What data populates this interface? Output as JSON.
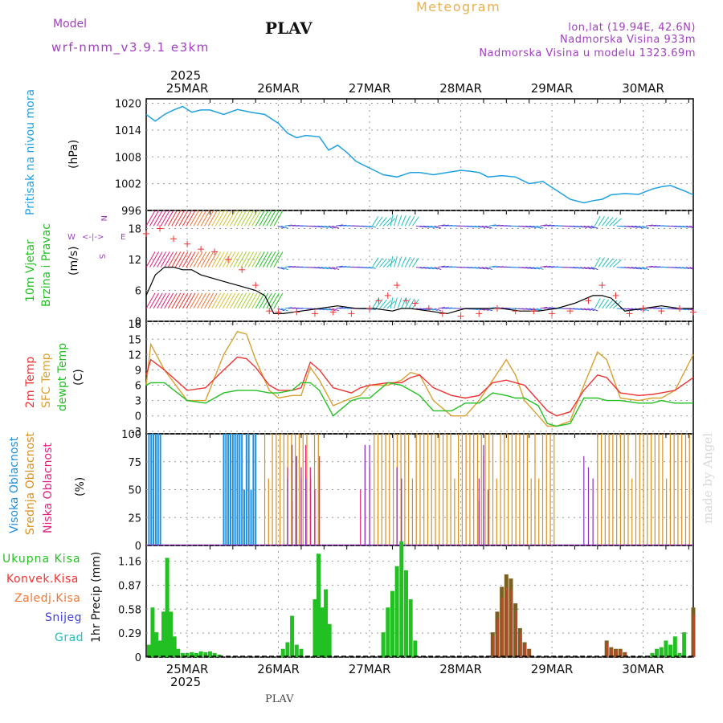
{
  "header": {
    "model_label": "Model",
    "model_name": "wrf-nmm_v3.9.1 e3km",
    "station": "PLAV",
    "meteogram_label": "Meteogram",
    "lonlat": "lon,lat (19.94E, 42.6N)",
    "altitude": "Nadmorska Visina 933m",
    "model_altitude": "Nadmorska Visina u modelu 1323.69m",
    "footer_station": "PLAV",
    "watermark": "made by Angel"
  },
  "colors": {
    "pressure": "#1fa0e0",
    "wind_green": "#22c022",
    "temp2m": "#ee3333",
    "sfc_temp": "#d8a030",
    "dewpt": "#22c022",
    "cloud_high": "#2090e0",
    "cloud_mid": "#d89020",
    "cloud_low": "#e02080",
    "cloud_purple": "#8830c0",
    "precip_total": "#22c022",
    "precip_conv": "#ee3333",
    "precip_frz": "#ee7733",
    "precip_snow": "#4040e0",
    "precip_hail": "#22c0c0",
    "header_purple": "#a040c0",
    "meteogram_orange": "#e8b050"
  },
  "chart_data": [
    {
      "type": "line",
      "id": "pressure",
      "ylabel": [
        "Pritisak na nivou mora",
        "(hPa)"
      ],
      "ylim": [
        996,
        1021
      ],
      "yticks": [
        "1020",
        "1014",
        "1008",
        "1002",
        "996"
      ],
      "x_start_day": 24.55,
      "x_end_day": 30.55,
      "x": [
        24.55,
        24.65,
        24.75,
        24.85,
        24.95,
        25.05,
        25.15,
        25.25,
        25.4,
        25.55,
        25.7,
        25.85,
        26.0,
        26.1,
        26.2,
        26.3,
        26.45,
        26.55,
        26.65,
        26.75,
        26.85,
        26.95,
        27.05,
        27.15,
        27.3,
        27.45,
        27.55,
        27.7,
        27.85,
        28.0,
        28.1,
        28.2,
        28.3,
        28.45,
        28.6,
        28.75,
        28.9,
        29.05,
        29.2,
        29.35,
        29.45,
        29.55,
        29.65,
        29.8,
        29.95,
        30.1,
        30.2,
        30.3,
        30.45,
        30.55
      ],
      "y": [
        1017.5,
        1016.0,
        1017.5,
        1018.5,
        1019.3,
        1018.0,
        1018.5,
        1018.5,
        1017.5,
        1018.6,
        1018.0,
        1017.5,
        1015.5,
        1013.3,
        1012.3,
        1012.8,
        1012.5,
        1009.5,
        1010.6,
        1009.0,
        1007.0,
        1006.0,
        1005.0,
        1004.0,
        1003.5,
        1004.5,
        1004.5,
        1004.0,
        1004.5,
        1005.0,
        1004.8,
        1004.5,
        1003.5,
        1003.8,
        1003.5,
        1002.0,
        1002.5,
        1000.5,
        998.5,
        997.7,
        998.2,
        998.5,
        999.5,
        999.8,
        999.6,
        1000.8,
        1001.3,
        1001.6,
        1000.4,
        999.5
      ]
    },
    {
      "type": "line",
      "id": "wind",
      "ylabel": [
        "10m Vjetar",
        "Brzina i Pravac",
        "(m/s)"
      ],
      "ylim": [
        0,
        21.5
      ],
      "yticks": [
        "18",
        "12",
        "6",
        "0"
      ],
      "compass_labels": [
        "N",
        "S",
        "W",
        "E"
      ],
      "speed_x": [
        24.55,
        24.65,
        24.75,
        24.85,
        24.95,
        25.05,
        25.15,
        25.25,
        25.35,
        25.45,
        25.55,
        25.65,
        25.75,
        25.85,
        25.95,
        26.05,
        26.25,
        26.45,
        26.65,
        26.85,
        27.05,
        27.25,
        27.35,
        27.45,
        27.65,
        27.85,
        28.05,
        28.25,
        28.45,
        28.65,
        28.85,
        29.05,
        29.25,
        29.45,
        29.55,
        29.65,
        29.8,
        30.0,
        30.2,
        30.4,
        30.55
      ],
      "speed_y": [
        5,
        9,
        10.5,
        10.5,
        10,
        10,
        9,
        8.5,
        8,
        7.5,
        7,
        6.5,
        6,
        5,
        1.5,
        1.5,
        2,
        2.5,
        3,
        2.5,
        2.5,
        2,
        2.5,
        2.5,
        2,
        1.5,
        2.5,
        2.5,
        2.5,
        2,
        2,
        2.5,
        3.5,
        5,
        5,
        4.5,
        2,
        2.5,
        3,
        2.5,
        2.5
      ],
      "gust_x": [
        24.55,
        24.7,
        24.85,
        25.0,
        25.15,
        25.3,
        25.45,
        25.6,
        25.75,
        25.9,
        26.0,
        26.2,
        26.4,
        26.6,
        26.8,
        27.0,
        27.1,
        27.2,
        27.3,
        27.4,
        27.5,
        27.65,
        27.8,
        28.0,
        28.2,
        28.4,
        28.6,
        28.8,
        29.0,
        29.2,
        29.4,
        29.55,
        29.7,
        29.85,
        30.0,
        30.2,
        30.4,
        30.55
      ],
      "gust_y": [
        17,
        18,
        16,
        15,
        14,
        13.5,
        12,
        10,
        7,
        2,
        1.8,
        1.8,
        1.5,
        1.8,
        1.5,
        2.5,
        4,
        5,
        7,
        4,
        3.5,
        2.5,
        1.5,
        1,
        1.5,
        2.5,
        2,
        2,
        1.5,
        2,
        4,
        7,
        5,
        1.5,
        2.5,
        2,
        2.5,
        1.8
      ]
    },
    {
      "type": "line",
      "id": "temperature",
      "ylabel": [
        "2m Temp",
        "SFC Temp",
        "dewpt Temp",
        "(C)"
      ],
      "ylim": [
        -3.5,
        18.5
      ],
      "yticks": [
        "18",
        "15",
        "12",
        "9",
        "6",
        "3",
        "0",
        "-3"
      ],
      "x": [
        24.55,
        24.6,
        24.75,
        25.0,
        25.2,
        25.4,
        25.55,
        25.65,
        25.75,
        25.9,
        26.0,
        26.15,
        26.25,
        26.35,
        26.45,
        26.6,
        26.8,
        26.9,
        27.0,
        27.2,
        27.35,
        27.45,
        27.55,
        27.7,
        27.9,
        28.05,
        28.2,
        28.35,
        28.5,
        28.6,
        28.7,
        28.85,
        28.95,
        29.05,
        29.2,
        29.35,
        29.5,
        29.6,
        29.75,
        29.95,
        30.1,
        30.2,
        30.35,
        30.55
      ],
      "temp2m": [
        8,
        11,
        9,
        5,
        5.5,
        9,
        11.5,
        11.2,
        9.5,
        6,
        5,
        5,
        5.5,
        10.5,
        9,
        5.5,
        4.5,
        5.5,
        6,
        6.5,
        6.5,
        7.5,
        8,
        5.5,
        4,
        3.5,
        4,
        6.5,
        7,
        6.5,
        6,
        3,
        1,
        0,
        0.8,
        5,
        8,
        7.5,
        4.5,
        4,
        4.2,
        4.5,
        5,
        7.5
      ],
      "sfc": [
        6,
        14,
        9,
        3,
        3,
        12,
        16.5,
        16,
        11,
        5,
        3.5,
        4,
        4,
        9.5,
        7,
        2,
        3.5,
        4,
        6,
        6,
        7,
        8.5,
        8,
        3,
        0,
        0,
        3,
        7,
        11,
        8,
        3,
        0,
        -2,
        -2,
        -1,
        6,
        12.5,
        11,
        3.5,
        3,
        3.5,
        3.5,
        5,
        12
      ],
      "dewpt": [
        6,
        6.5,
        6.5,
        3,
        2.5,
        4.5,
        5,
        5,
        5,
        4.5,
        4.5,
        5,
        6.5,
        6.5,
        5,
        0,
        3,
        3.5,
        3.5,
        6.5,
        6,
        5,
        4,
        1,
        1,
        2.5,
        2.5,
        4.5,
        4,
        3.5,
        3.5,
        2,
        -1.5,
        -2,
        -1.5,
        3.5,
        3.5,
        3,
        3,
        2.5,
        2.5,
        3,
        2.5,
        2.5
      ]
    },
    {
      "type": "bar",
      "id": "clouds",
      "ylabel": [
        "Visoka Oblacnost",
        "Srednja Oblacnost",
        "Niska Oblacnost",
        "(%)"
      ],
      "ylim": [
        0,
        100
      ],
      "yticks": [
        "100",
        "75",
        "50",
        "25",
        "0"
      ],
      "high_ranges": [
        [
          24.58,
          24.72
        ],
        [
          25.4,
          25.75
        ]
      ],
      "mid_ranges": [
        [
          25.85,
          26.45
        ],
        [
          27.05,
          29.05
        ],
        [
          29.5,
          30.55
        ]
      ],
      "low_ranges": [
        [
          26.1,
          26.5
        ],
        [
          26.9,
          27.0
        ],
        [
          28.2,
          28.3
        ]
      ],
      "purple_ranges": [
        [
          26.1,
          26.35
        ],
        [
          26.95,
          27.0
        ],
        [
          27.3,
          27.4
        ],
        [
          28.2,
          28.25
        ],
        [
          29.35,
          29.5
        ]
      ]
    },
    {
      "type": "bar",
      "id": "precipitation",
      "ylabel": [
        "1hr Precip (mm)"
      ],
      "legend": [
        "Ukupna Kisa",
        "Konvek.Kisa",
        "Zaledj.Kisa",
        "Snijeg",
        "Grad"
      ],
      "ylim": [
        0,
        1.35
      ],
      "yticks": [
        "1.16",
        "0.87",
        "0.58",
        "0.29",
        "0"
      ],
      "green_bars": [
        [
          24.58,
          0.15
        ],
        [
          24.62,
          0.6
        ],
        [
          24.66,
          0.3
        ],
        [
          24.7,
          0.2
        ],
        [
          24.74,
          0.55
        ],
        [
          24.78,
          1.2
        ],
        [
          24.82,
          0.55
        ],
        [
          24.86,
          0.25
        ],
        [
          24.9,
          0.1
        ],
        [
          24.95,
          0.05
        ],
        [
          25.0,
          0.05
        ],
        [
          25.05,
          0.06
        ],
        [
          25.1,
          0.05
        ],
        [
          25.15,
          0.07
        ],
        [
          25.2,
          0.06
        ],
        [
          25.25,
          0.07
        ],
        [
          25.3,
          0.05
        ],
        [
          25.35,
          0.03
        ],
        [
          26.05,
          0.1
        ],
        [
          26.1,
          0.18
        ],
        [
          26.15,
          0.5
        ],
        [
          26.2,
          0.15
        ],
        [
          26.25,
          0.1
        ],
        [
          26.4,
          0.7
        ],
        [
          26.44,
          1.25
        ],
        [
          26.48,
          0.6
        ],
        [
          26.52,
          0.82
        ],
        [
          26.56,
          0.4
        ],
        [
          27.15,
          0.3
        ],
        [
          27.2,
          0.6
        ],
        [
          27.25,
          0.8
        ],
        [
          27.3,
          1.1
        ],
        [
          27.35,
          1.4
        ],
        [
          27.4,
          1.05
        ],
        [
          27.45,
          0.7
        ],
        [
          27.5,
          0.2
        ],
        [
          28.35,
          0.3
        ],
        [
          28.4,
          0.55
        ],
        [
          28.45,
          0.85
        ],
        [
          28.5,
          1.0
        ],
        [
          28.55,
          0.95
        ],
        [
          28.6,
          0.65
        ],
        [
          28.65,
          0.35
        ],
        [
          28.7,
          0.18
        ],
        [
          28.75,
          0.1
        ],
        [
          29.6,
          0.2
        ],
        [
          29.65,
          0.12
        ],
        [
          29.7,
          0.1
        ],
        [
          29.75,
          0.1
        ],
        [
          29.8,
          0.06
        ],
        [
          30.1,
          0.05
        ],
        [
          30.15,
          0.1
        ],
        [
          30.2,
          0.12
        ],
        [
          30.25,
          0.2
        ],
        [
          30.3,
          0.15
        ],
        [
          30.35,
          0.25
        ],
        [
          30.4,
          0.05
        ],
        [
          30.45,
          0.3
        ],
        [
          30.55,
          0.6
        ]
      ],
      "brown_ranges": [
        [
          28.35,
          28.75
        ],
        [
          29.6,
          29.8
        ],
        [
          30.5,
          30.55
        ]
      ]
    }
  ],
  "date_axis": {
    "year_top": "2025",
    "year_bottom": "2025",
    "days": [
      {
        "day": 25,
        "label": "25MAR"
      },
      {
        "day": 26,
        "label": "26MAR"
      },
      {
        "day": 27,
        "label": "27MAR"
      },
      {
        "day": 28,
        "label": "28MAR"
      },
      {
        "day": 29,
        "label": "29MAR"
      },
      {
        "day": 30,
        "label": "30MAR"
      }
    ]
  }
}
